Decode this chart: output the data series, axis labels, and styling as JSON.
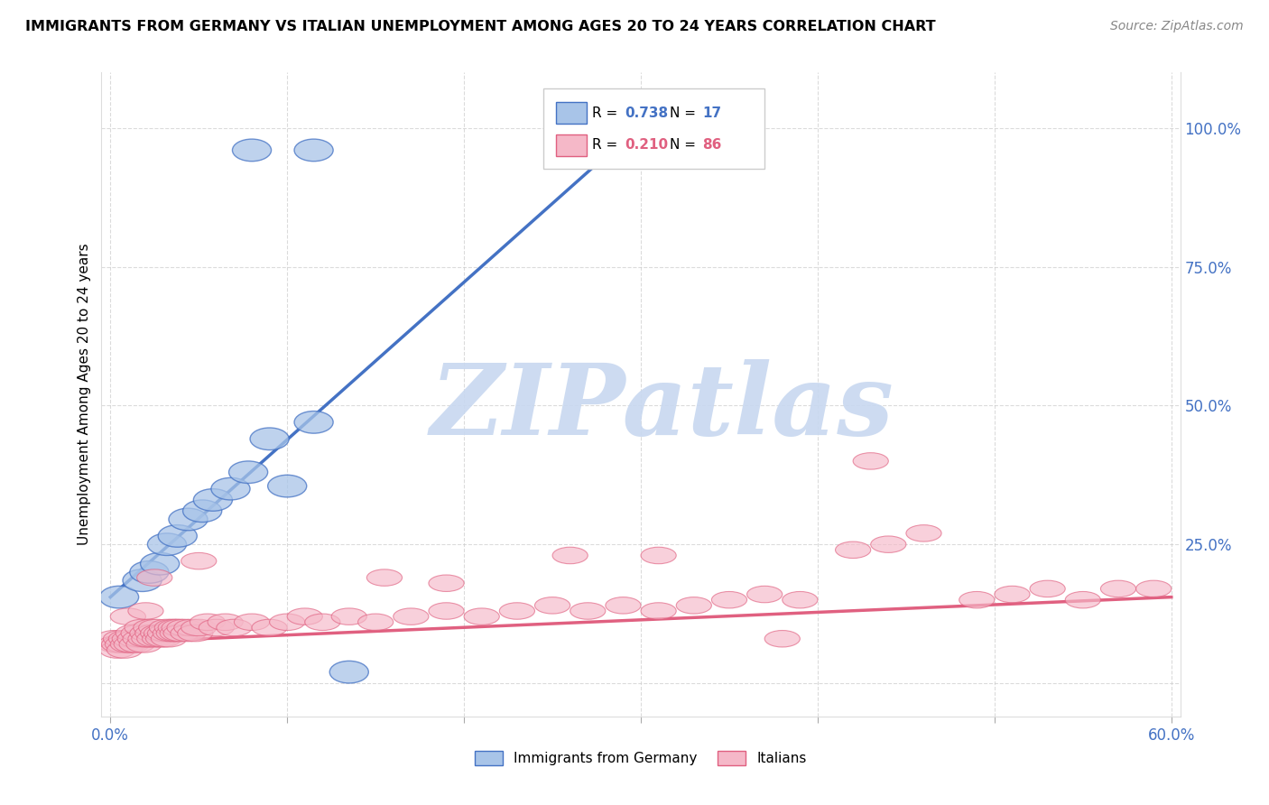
{
  "title": "IMMIGRANTS FROM GERMANY VS ITALIAN UNEMPLOYMENT AMONG AGES 20 TO 24 YEARS CORRELATION CHART",
  "source": "Source: ZipAtlas.com",
  "ylabel": "Unemployment Among Ages 20 to 24 years",
  "xlim": [
    -0.005,
    0.605
  ],
  "ylim": [
    -0.06,
    1.1
  ],
  "x_ticks": [
    0.0,
    0.1,
    0.2,
    0.3,
    0.4,
    0.5,
    0.6
  ],
  "x_tick_labels": [
    "0.0%",
    "",
    "",
    "",
    "",
    "",
    "60.0%"
  ],
  "y_ticks": [
    0.0,
    0.25,
    0.5,
    0.75,
    1.0
  ],
  "y_tick_labels_right": [
    "",
    "25.0%",
    "50.0%",
    "75.0%",
    "100.0%"
  ],
  "blue_R": "0.738",
  "blue_N": "17",
  "pink_R": "0.210",
  "pink_N": "86",
  "blue_color": "#A8C4E8",
  "pink_color": "#F5B8C8",
  "blue_edge_color": "#4472C4",
  "pink_edge_color": "#E06080",
  "blue_line_color": "#4472C4",
  "pink_line_color": "#E06080",
  "grid_color": "#CCCCCC",
  "background_color": "#FFFFFF",
  "watermark_text": "ZIPatlas",
  "watermark_color": "#C8D8F0",
  "blue_x": [
    0.005,
    0.018,
    0.022,
    0.028,
    0.032,
    0.038,
    0.044,
    0.052,
    0.058,
    0.068,
    0.078,
    0.09,
    0.1,
    0.115,
    0.135,
    0.115,
    0.08
  ],
  "blue_y": [
    0.155,
    0.185,
    0.2,
    0.215,
    0.25,
    0.265,
    0.295,
    0.31,
    0.33,
    0.35,
    0.38,
    0.44,
    0.355,
    0.47,
    0.02,
    0.96,
    0.96
  ],
  "pink_x": [
    0.002,
    0.003,
    0.004,
    0.005,
    0.006,
    0.007,
    0.008,
    0.009,
    0.01,
    0.01,
    0.011,
    0.012,
    0.013,
    0.014,
    0.015,
    0.016,
    0.017,
    0.018,
    0.019,
    0.02,
    0.02,
    0.021,
    0.022,
    0.023,
    0.024,
    0.025,
    0.026,
    0.027,
    0.028,
    0.029,
    0.03,
    0.031,
    0.032,
    0.033,
    0.034,
    0.035,
    0.036,
    0.037,
    0.038,
    0.039,
    0.04,
    0.042,
    0.044,
    0.046,
    0.048,
    0.05,
    0.055,
    0.06,
    0.065,
    0.07,
    0.08,
    0.09,
    0.1,
    0.11,
    0.12,
    0.135,
    0.15,
    0.17,
    0.19,
    0.21,
    0.23,
    0.25,
    0.27,
    0.29,
    0.31,
    0.33,
    0.35,
    0.37,
    0.39,
    0.42,
    0.44,
    0.46,
    0.49,
    0.51,
    0.53,
    0.55,
    0.57,
    0.59,
    0.43,
    0.38,
    0.31,
    0.26,
    0.19,
    0.155,
    0.05,
    0.025
  ],
  "pink_y": [
    0.08,
    0.07,
    0.06,
    0.07,
    0.08,
    0.07,
    0.06,
    0.08,
    0.07,
    0.12,
    0.08,
    0.07,
    0.09,
    0.08,
    0.07,
    0.09,
    0.08,
    0.1,
    0.07,
    0.08,
    0.13,
    0.09,
    0.08,
    0.1,
    0.09,
    0.08,
    0.1,
    0.09,
    0.08,
    0.09,
    0.08,
    0.09,
    0.1,
    0.08,
    0.09,
    0.1,
    0.09,
    0.1,
    0.09,
    0.1,
    0.09,
    0.1,
    0.09,
    0.1,
    0.09,
    0.1,
    0.11,
    0.1,
    0.11,
    0.1,
    0.11,
    0.1,
    0.11,
    0.12,
    0.11,
    0.12,
    0.11,
    0.12,
    0.13,
    0.12,
    0.13,
    0.14,
    0.13,
    0.14,
    0.13,
    0.14,
    0.15,
    0.16,
    0.15,
    0.24,
    0.25,
    0.27,
    0.15,
    0.16,
    0.17,
    0.15,
    0.17,
    0.17,
    0.4,
    0.08,
    0.23,
    0.23,
    0.18,
    0.19,
    0.22,
    0.19
  ],
  "blue_line_x0": 0.0,
  "blue_line_y0": 0.155,
  "blue_line_x1": 0.305,
  "blue_line_y1": 1.02,
  "pink_line_x0": 0.0,
  "pink_line_y0": 0.073,
  "pink_line_x1": 0.6,
  "pink_line_y1": 0.155
}
